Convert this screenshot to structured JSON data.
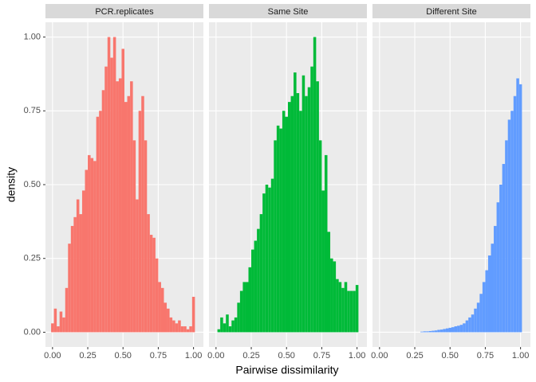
{
  "chart_data": {
    "type": "histogram",
    "xlabel": "Pairwise dissimilarity",
    "ylabel": "density",
    "xlim": [
      -0.05,
      1.07
    ],
    "ylim": [
      -0.05,
      1.05
    ],
    "xticks": [
      {
        "value": 0,
        "label": "0.00"
      },
      {
        "value": 0.25,
        "label": "0.25"
      },
      {
        "value": 0.5,
        "label": "0.50"
      },
      {
        "value": 0.75,
        "label": "0.75"
      },
      {
        "value": 1,
        "label": "1.00"
      }
    ],
    "yticks": [
      {
        "value": 0,
        "label": "0.00"
      },
      {
        "value": 0.25,
        "label": "0.25"
      },
      {
        "value": 0.5,
        "label": "0.50"
      },
      {
        "value": 0.75,
        "label": "0.75"
      },
      {
        "value": 1,
        "label": "1.00"
      }
    ],
    "grid": true,
    "bins": [
      -0.01,
      0.01,
      0.03,
      0.05,
      0.07,
      0.09,
      0.11,
      0.13,
      0.15,
      0.17,
      0.19,
      0.21,
      0.23,
      0.25,
      0.27,
      0.29,
      0.31,
      0.33,
      0.35,
      0.37,
      0.39,
      0.41,
      0.43,
      0.45,
      0.47,
      0.49,
      0.51,
      0.53,
      0.55,
      0.57,
      0.59,
      0.61,
      0.63,
      0.65,
      0.67,
      0.69,
      0.71,
      0.73,
      0.75,
      0.77,
      0.79,
      0.81,
      0.83,
      0.85,
      0.87,
      0.89,
      0.91,
      0.93,
      0.95,
      0.97,
      0.99,
      1.01
    ],
    "series": [
      {
        "name": "PCR.replicates",
        "color": "#F8766D",
        "values": [
          0.03,
          0.08,
          0.02,
          0.07,
          0.05,
          0.15,
          0.3,
          0.36,
          0.39,
          0.45,
          0.4,
          0.48,
          0.55,
          0.6,
          0.59,
          0.58,
          0.73,
          0.75,
          0.82,
          0.9,
          1.0,
          0.93,
          1.0,
          0.85,
          0.86,
          0.96,
          0.78,
          0.8,
          0.85,
          0.65,
          0.45,
          0.75,
          0.8,
          0.65,
          0.4,
          0.33,
          0.32,
          0.25,
          0.17,
          0.15,
          0.1,
          0.08,
          0.05,
          0.04,
          0.03,
          0.04,
          0.02,
          0.02,
          0.01,
          0.02,
          0.12
        ]
      },
      {
        "name": "Same Site",
        "color": "#00BA38",
        "values": [
          0,
          0.01,
          0.05,
          0.03,
          0.06,
          0.02,
          0.04,
          0.05,
          0.1,
          0.14,
          0.17,
          0.17,
          0.22,
          0.28,
          0.31,
          0.35,
          0.4,
          0.47,
          0.5,
          0.49,
          0.52,
          0.65,
          0.7,
          0.69,
          0.75,
          0.73,
          0.78,
          0.8,
          0.88,
          0.81,
          0.75,
          0.87,
          0.8,
          0.83,
          0.9,
          1.0,
          0.85,
          0.65,
          0.48,
          0.6,
          0.34,
          0.25,
          0.24,
          0.18,
          0.17,
          0.15,
          0.17,
          0.14,
          0.14,
          0.14,
          0.16
        ]
      },
      {
        "name": "Different Site",
        "color": "#619CFF",
        "values": [
          0,
          0,
          0,
          0,
          0,
          0,
          0,
          0,
          0,
          0,
          0,
          0,
          0,
          0,
          0,
          0.002,
          0.003,
          0.003,
          0.004,
          0.005,
          0.006,
          0.008,
          0.009,
          0.011,
          0.013,
          0.015,
          0.017,
          0.02,
          0.022,
          0.025,
          0.03,
          0.04,
          0.05,
          0.06,
          0.08,
          0.1,
          0.13,
          0.17,
          0.21,
          0.26,
          0.3,
          0.36,
          0.44,
          0.5,
          0.57,
          0.65,
          0.72,
          0.75,
          0.8,
          0.86,
          0.84
        ]
      }
    ]
  }
}
